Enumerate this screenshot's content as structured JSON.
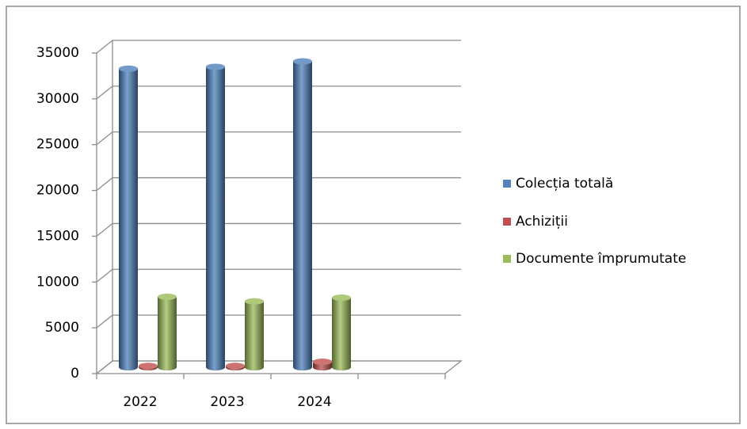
{
  "chart_data": {
    "type": "bar3d",
    "categories": [
      "2022",
      "2023",
      "2024",
      null
    ],
    "series": [
      {
        "name": "Colecția totală",
        "color": "#4f81bd",
        "values": [
          32600,
          32800,
          33400,
          null
        ]
      },
      {
        "name": "Achiziții",
        "color": "#c0504d",
        "values": [
          150,
          150,
          600,
          null
        ]
      },
      {
        "name": "Documente împrumutate",
        "color": "#9bbb59",
        "values": [
          7700,
          7200,
          7600,
          null
        ]
      }
    ],
    "ylim": [
      0,
      35000
    ],
    "yticks": [
      0,
      5000,
      10000,
      15000,
      20000,
      25000,
      30000,
      35000
    ],
    "grid": true,
    "legend": "right"
  }
}
